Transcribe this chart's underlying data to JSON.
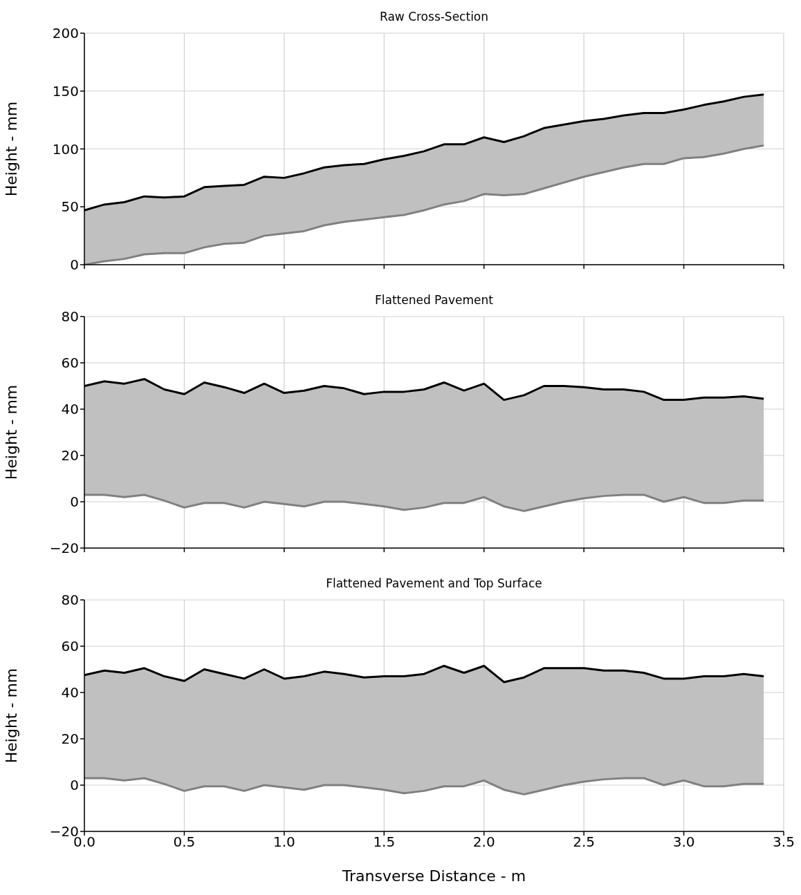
{
  "chart_data": [
    {
      "type": "line",
      "title": "Raw Cross-Section",
      "ylabel": "Height - mm",
      "x": [
        0,
        0.1,
        0.2,
        0.3,
        0.4,
        0.5,
        0.6,
        0.7,
        0.8,
        0.9,
        1.0,
        1.1,
        1.2,
        1.3,
        1.4,
        1.5,
        1.6,
        1.7,
        1.8,
        1.9,
        2.0,
        2.1,
        2.2,
        2.3,
        2.4,
        2.5,
        2.6,
        2.7,
        2.8,
        2.9,
        3.0,
        3.1,
        3.2,
        3.3,
        3.4
      ],
      "series": [
        {
          "type": "line",
          "color": "#000000",
          "values": [
            47,
            52,
            54,
            59,
            58,
            59,
            67,
            68,
            69,
            76,
            75,
            79,
            84,
            86,
            87,
            91,
            94,
            98,
            104,
            104,
            110,
            106,
            111,
            118,
            121,
            124,
            126,
            129,
            131,
            131,
            134,
            138,
            141,
            145,
            147
          ],
          "lower": [
            0,
            3,
            5,
            9,
            10,
            10,
            15,
            18,
            19,
            25,
            27,
            29,
            34,
            37,
            39,
            41,
            43,
            47,
            52,
            55,
            61,
            60,
            61,
            66,
            71,
            76,
            80,
            84,
            87,
            87,
            92,
            93,
            96,
            100,
            103
          ],
          "upper": [
            47,
            52,
            54,
            59,
            58,
            59,
            67,
            68,
            69,
            76,
            75,
            79,
            84,
            86,
            87,
            91,
            94,
            98,
            104,
            104,
            110,
            106,
            111,
            118,
            121,
            124,
            126,
            129,
            131,
            131,
            134,
            138,
            141,
            145,
            147
          ]
        },
        {
          "type": "line",
          "color": "#808080",
          "values": [
            0,
            3,
            5,
            9,
            10,
            10,
            15,
            18,
            19,
            25,
            27,
            29,
            34,
            37,
            39,
            41,
            43,
            47,
            52,
            55,
            61,
            60,
            61,
            66,
            71,
            76,
            80,
            84,
            87,
            87,
            92,
            93,
            96,
            100,
            103
          ]
        }
      ],
      "xlim": [
        0,
        3.5
      ],
      "xticks": [
        {
          "value": 0,
          "label": null
        },
        {
          "value": 0.5,
          "label": null
        },
        {
          "value": 1,
          "label": null
        },
        {
          "value": 1.5,
          "label": null
        },
        {
          "value": 2,
          "label": null
        },
        {
          "value": 2.5,
          "label": null
        },
        {
          "value": 3,
          "label": null
        },
        {
          "value": 3.5,
          "label": null
        }
      ],
      "ylim": [
        0,
        200
      ],
      "yticks": [
        0,
        50,
        100,
        150,
        200
      ],
      "grid": true,
      "tick_labels": "y"
    },
    {
      "type": "line",
      "title": "Flattened Pavement",
      "ylabel": "Height - mm",
      "x": [
        0,
        0.1,
        0.2,
        0.3,
        0.4,
        0.5,
        0.6,
        0.7,
        0.8,
        0.9,
        1.0,
        1.1,
        1.2,
        1.3,
        1.4,
        1.5,
        1.6,
        1.7,
        1.8,
        1.9,
        2.0,
        2.1,
        2.2,
        2.3,
        2.4,
        2.5,
        2.6,
        2.7,
        2.8,
        2.9,
        3.0,
        3.1,
        3.2,
        3.3,
        3.4
      ],
      "series": [
        {
          "type": "line",
          "color": "#000000",
          "values": [
            50,
            52,
            51,
            53,
            48.5,
            46.5,
            51.5,
            49.5,
            47,
            51,
            47,
            48,
            50,
            49,
            46.5,
            47.5,
            47.5,
            48.5,
            51.5,
            48,
            51,
            44,
            46,
            50,
            50,
            49.5,
            48.5,
            48.5,
            47.5,
            44,
            44,
            45,
            45,
            45.5,
            44.5
          ],
          "lower": [
            3,
            3,
            2,
            3,
            0.5,
            -2.5,
            -0.5,
            -0.5,
            -2.5,
            0,
            -1,
            -2,
            0,
            0,
            -1,
            -2,
            -3.5,
            -2.5,
            -0.5,
            -0.5,
            2,
            -2,
            -4,
            -2,
            0,
            1.5,
            2.5,
            3,
            3,
            0,
            2,
            -0.5,
            -0.5,
            0.5,
            0.5
          ],
          "upper": [
            50,
            52,
            51,
            53,
            48.5,
            46.5,
            51.5,
            49.5,
            47,
            51,
            47,
            48,
            50,
            49,
            46.5,
            47.5,
            47.5,
            48.5,
            51.5,
            48,
            51,
            44,
            46,
            50,
            50,
            49.5,
            48.5,
            48.5,
            47.5,
            44,
            44,
            45,
            45,
            45.5,
            44.5
          ]
        },
        {
          "type": "line",
          "color": "#808080",
          "values": [
            3,
            3,
            2,
            3,
            0.5,
            -2.5,
            -0.5,
            -0.5,
            -2.5,
            0,
            -1,
            -2,
            0,
            0,
            -1,
            -2,
            -3.5,
            -2.5,
            -0.5,
            -0.5,
            2,
            -2,
            -4,
            -2,
            0,
            1.5,
            2.5,
            3,
            3,
            0,
            2,
            -0.5,
            -0.5,
            0.5,
            0.5
          ]
        }
      ],
      "xlim": [
        0,
        3.5
      ],
      "xticks": [
        {
          "value": 0,
          "label": null
        },
        {
          "value": 0.5,
          "label": null
        },
        {
          "value": 1,
          "label": null
        },
        {
          "value": 1.5,
          "label": null
        },
        {
          "value": 2,
          "label": null
        },
        {
          "value": 2.5,
          "label": null
        },
        {
          "value": 3,
          "label": null
        },
        {
          "value": 3.5,
          "label": null
        }
      ],
      "ylim": [
        -20,
        80
      ],
      "yticks": [
        {
          "value": -20,
          "label": "−20"
        },
        0,
        20,
        40,
        60,
        80
      ],
      "grid": true,
      "tick_labels": "y"
    },
    {
      "type": "line",
      "title": "Flattened Pavement and Top Surface",
      "ylabel": "Height - mm",
      "xlabel": "Transverse Distance - m",
      "x": [
        0,
        0.1,
        0.2,
        0.3,
        0.4,
        0.5,
        0.6,
        0.7,
        0.8,
        0.9,
        1.0,
        1.1,
        1.2,
        1.3,
        1.4,
        1.5,
        1.6,
        1.7,
        1.8,
        1.9,
        2.0,
        2.1,
        2.2,
        2.3,
        2.4,
        2.5,
        2.6,
        2.7,
        2.8,
        2.9,
        3.0,
        3.1,
        3.2,
        3.3,
        3.4
      ],
      "series": [
        {
          "type": "line",
          "color": "#000000",
          "values": [
            47.5,
            49.5,
            48.5,
            50.5,
            47,
            45,
            50,
            48,
            46,
            50,
            46,
            47,
            49,
            48,
            46.5,
            47,
            47,
            48,
            51.5,
            48.5,
            51.5,
            44.5,
            46.5,
            50.5,
            50.5,
            50.5,
            49.5,
            49.5,
            48.5,
            46,
            46,
            47,
            47,
            48,
            47
          ],
          "lower": [
            3,
            3,
            2,
            3,
            0.5,
            -2.5,
            -0.5,
            -0.5,
            -2.5,
            0,
            -1,
            -2,
            0,
            0,
            -1,
            -2,
            -3.5,
            -2.5,
            -0.5,
            -0.5,
            2,
            -2,
            -4,
            -2,
            0,
            1.5,
            2.5,
            3,
            3,
            0,
            2,
            -0.5,
            -0.5,
            0.5,
            0.5
          ],
          "upper": [
            47.5,
            49.5,
            48.5,
            50.5,
            47,
            45,
            50,
            48,
            46,
            50,
            46,
            47,
            49,
            48,
            46.5,
            47,
            47,
            48,
            51.5,
            48.5,
            51.5,
            44.5,
            46.5,
            50.5,
            50.5,
            50.5,
            49.5,
            49.5,
            48.5,
            46,
            46,
            47,
            47,
            48,
            47
          ]
        },
        {
          "type": "line",
          "color": "#808080",
          "values": [
            3,
            3,
            2,
            3,
            0.5,
            -2.5,
            -0.5,
            -0.5,
            -2.5,
            0,
            -1,
            -2,
            0,
            0,
            -1,
            -2,
            -3.5,
            -2.5,
            -0.5,
            -0.5,
            2,
            -2,
            -4,
            -2,
            0,
            1.5,
            2.5,
            3,
            3,
            0,
            2,
            -0.5,
            -0.5,
            0.5,
            0.5
          ]
        }
      ],
      "xlim": [
        0,
        3.5
      ],
      "xticks": [
        {
          "value": 0,
          "label": "0.0"
        },
        0.5,
        {
          "value": 1,
          "label": "1.0"
        },
        1.5,
        {
          "value": 2,
          "label": "2.0"
        },
        2.5,
        {
          "value": 3,
          "label": "3.0"
        },
        3.5
      ],
      "ylim": [
        -20,
        80
      ],
      "yticks": [
        {
          "value": -20,
          "label": "−20"
        },
        0,
        20,
        40,
        60,
        80
      ],
      "grid": true
    }
  ]
}
